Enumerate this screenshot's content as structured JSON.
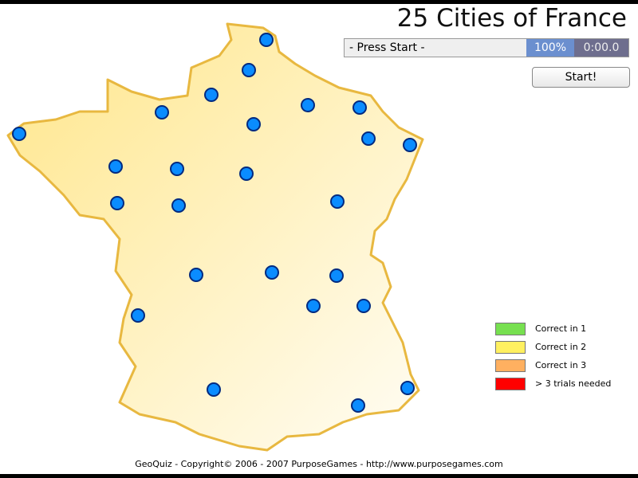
{
  "title": "25 Cities of France",
  "status": {
    "message": "- Press Start -",
    "percent": "100%",
    "time": "0:00.0"
  },
  "start_button": "Start!",
  "legend": [
    {
      "label": "Correct in 1",
      "color": "#77e050"
    },
    {
      "label": "Correct in 2",
      "color": "#fff060"
    },
    {
      "label": "Correct in 3",
      "color": "#ffb060"
    },
    {
      "label": "> 3 trials needed",
      "color": "#ff0000"
    }
  ],
  "colors": {
    "city": "#0a8cff",
    "outline": "#e8b840",
    "land": "#fff3c0"
  },
  "city_count": 25,
  "footer": "GeoQuiz - Copyright© 2006 - 2007 PurposeGames - http://www.purposegames.com"
}
